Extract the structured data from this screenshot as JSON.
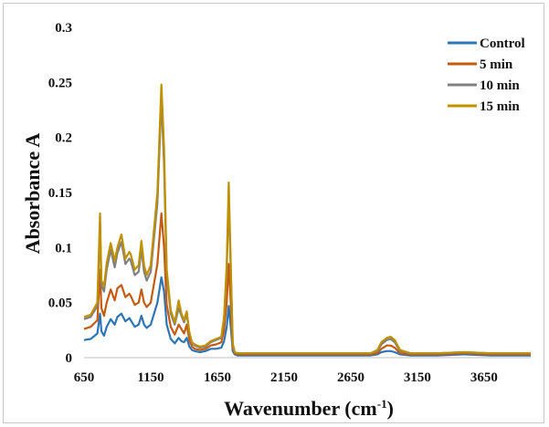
{
  "chart_data": {
    "type": "line",
    "title": "",
    "xlabel": "Wavenumber (cm",
    "xlabel_sup": "-1",
    "xlabel_close": ")",
    "ylabel": "Absorbance A",
    "xlim": [
      650,
      4000
    ],
    "ylim": [
      0,
      0.3
    ],
    "x_ticks": [
      650,
      1150,
      1650,
      2150,
      2650,
      3150,
      3650
    ],
    "x_tick_labels": [
      "650",
      "1150",
      "1650",
      "2150",
      "2650",
      "3150",
      "3650"
    ],
    "y_ticks": [
      0,
      0.05,
      0.1,
      0.15,
      0.2,
      0.25,
      0.3
    ],
    "y_tick_labels": [
      "0",
      "0.05",
      "0.1",
      "0.15",
      "0.2",
      "0.25",
      "0.3"
    ],
    "grid": false,
    "legend_position": "top-right",
    "x": [
      650,
      700,
      750,
      770,
      780,
      800,
      820,
      850,
      880,
      900,
      930,
      960,
      990,
      1000,
      1030,
      1060,
      1080,
      1100,
      1120,
      1150,
      1200,
      1230,
      1250,
      1270,
      1300,
      1330,
      1360,
      1380,
      1400,
      1420,
      1440,
      1460,
      1480,
      1520,
      1560,
      1600,
      1640,
      1680,
      1700,
      1720,
      1735,
      1750,
      1765,
      1780,
      1800,
      1850,
      2000,
      2300,
      2600,
      2800,
      2850,
      2880,
      2920,
      2950,
      2980,
      3020,
      3100,
      3300,
      3500,
      3700,
      3900,
      4000
    ],
    "series": [
      {
        "name": "Control",
        "color": "#2e75b6",
        "values": [
          0.016,
          0.017,
          0.022,
          0.04,
          0.024,
          0.02,
          0.028,
          0.035,
          0.03,
          0.037,
          0.04,
          0.033,
          0.036,
          0.034,
          0.028,
          0.03,
          0.038,
          0.03,
          0.027,
          0.03,
          0.05,
          0.073,
          0.06,
          0.03,
          0.017,
          0.013,
          0.018,
          0.015,
          0.014,
          0.018,
          0.01,
          0.007,
          0.006,
          0.005,
          0.006,
          0.008,
          0.008,
          0.009,
          0.015,
          0.028,
          0.047,
          0.028,
          0.006,
          0.003,
          0.002,
          0.002,
          0.002,
          0.002,
          0.002,
          0.002,
          0.003,
          0.005,
          0.006,
          0.006,
          0.005,
          0.003,
          0.002,
          0.002,
          0.003,
          0.002,
          0.002,
          0.002
        ]
      },
      {
        "name": "5 min",
        "color": "#c55a11",
        "values": [
          0.026,
          0.028,
          0.034,
          0.08,
          0.045,
          0.038,
          0.05,
          0.062,
          0.052,
          0.063,
          0.066,
          0.055,
          0.058,
          0.056,
          0.048,
          0.05,
          0.062,
          0.05,
          0.046,
          0.05,
          0.085,
          0.131,
          0.1,
          0.048,
          0.028,
          0.021,
          0.03,
          0.026,
          0.022,
          0.03,
          0.016,
          0.01,
          0.008,
          0.007,
          0.008,
          0.011,
          0.012,
          0.014,
          0.025,
          0.05,
          0.085,
          0.05,
          0.009,
          0.004,
          0.003,
          0.003,
          0.003,
          0.003,
          0.003,
          0.003,
          0.004,
          0.008,
          0.011,
          0.011,
          0.009,
          0.004,
          0.003,
          0.003,
          0.004,
          0.003,
          0.003,
          0.003
        ]
      },
      {
        "name": "10 min",
        "color": "#808080",
        "values": [
          0.035,
          0.037,
          0.047,
          0.122,
          0.066,
          0.06,
          0.08,
          0.098,
          0.082,
          0.095,
          0.105,
          0.085,
          0.09,
          0.088,
          0.075,
          0.078,
          0.098,
          0.078,
          0.07,
          0.078,
          0.14,
          0.235,
          0.175,
          0.075,
          0.04,
          0.03,
          0.045,
          0.038,
          0.032,
          0.04,
          0.022,
          0.013,
          0.011,
          0.009,
          0.01,
          0.014,
          0.016,
          0.018,
          0.035,
          0.08,
          0.145,
          0.08,
          0.012,
          0.005,
          0.004,
          0.004,
          0.004,
          0.004,
          0.004,
          0.004,
          0.006,
          0.012,
          0.016,
          0.017,
          0.014,
          0.006,
          0.004,
          0.004,
          0.005,
          0.004,
          0.004,
          0.004
        ]
      },
      {
        "name": "15 min",
        "color": "#bf9000",
        "values": [
          0.037,
          0.039,
          0.05,
          0.131,
          0.07,
          0.065,
          0.086,
          0.104,
          0.088,
          0.1,
          0.112,
          0.09,
          0.096,
          0.094,
          0.08,
          0.084,
          0.106,
          0.084,
          0.075,
          0.084,
          0.15,
          0.248,
          0.19,
          0.08,
          0.043,
          0.032,
          0.052,
          0.04,
          0.034,
          0.042,
          0.023,
          0.014,
          0.012,
          0.01,
          0.011,
          0.015,
          0.017,
          0.019,
          0.037,
          0.085,
          0.159,
          0.085,
          0.013,
          0.005,
          0.004,
          0.004,
          0.004,
          0.004,
          0.004,
          0.004,
          0.007,
          0.014,
          0.018,
          0.019,
          0.016,
          0.007,
          0.004,
          0.004,
          0.005,
          0.004,
          0.004,
          0.004
        ]
      }
    ]
  }
}
